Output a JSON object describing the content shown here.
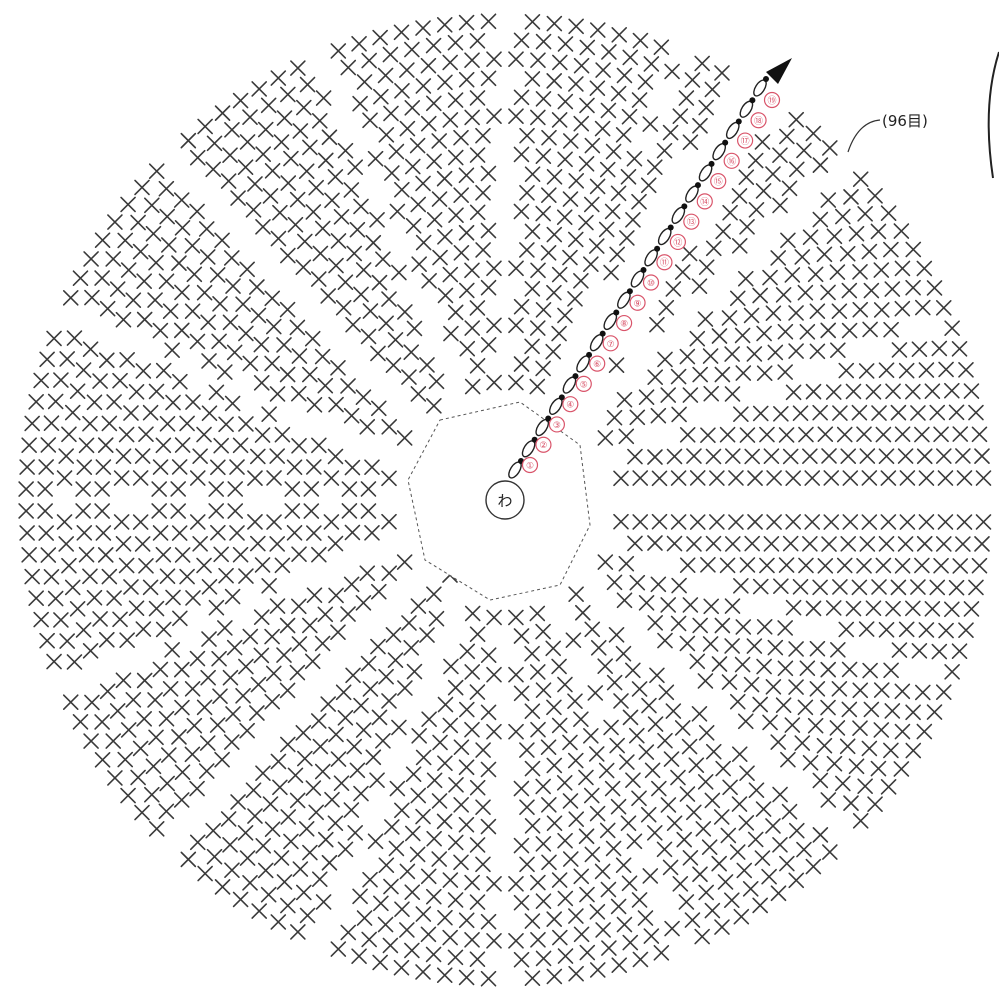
{
  "center_label": "わ",
  "stitch_count_label": "(96目)",
  "round_markers": [
    "①",
    "②",
    "③",
    "④",
    "⑤",
    "⑥",
    "⑦",
    "⑧",
    "⑨",
    "⑩",
    "⑪",
    "⑫",
    "⑬",
    "⑭",
    "⑮",
    "⑯",
    "⑰",
    "⑱",
    "⑲"
  ],
  "colors": {
    "stitch": "#3a3a3a",
    "round_marker": "#d9546a",
    "arrow": "#111111"
  },
  "icons": {
    "start_arrow": "black-arrowhead-icon"
  }
}
